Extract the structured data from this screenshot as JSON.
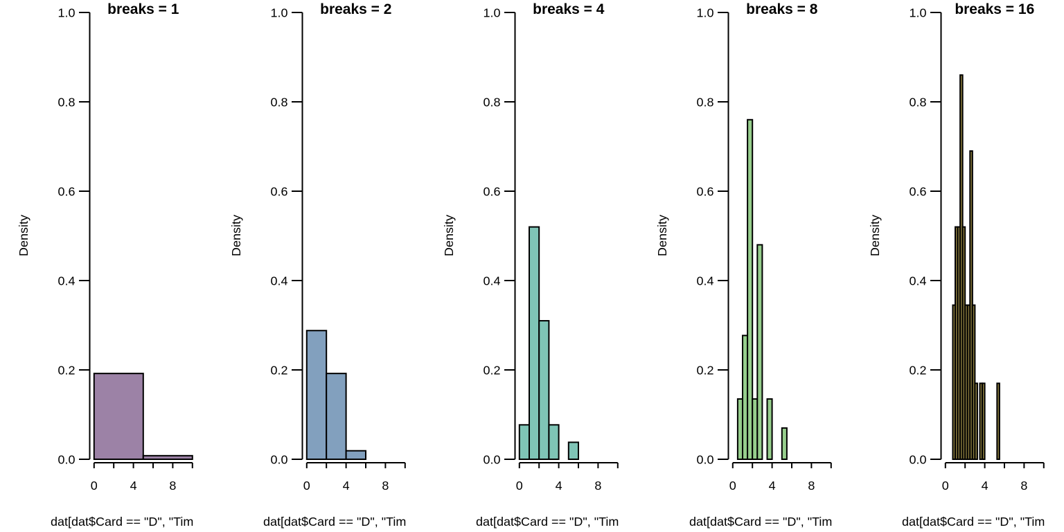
{
  "figure": {
    "background": "#ffffff",
    "axis_color": "#000000",
    "panel_count": 5
  },
  "chart_data": [
    {
      "type": "bar",
      "subtype": "histogram",
      "title": "breaks =  1",
      "ylabel": "Density",
      "xlabel": "dat[dat$Card == \"D\", \"Tim",
      "xlim": [
        0,
        10
      ],
      "ylim": [
        0,
        1
      ],
      "grid": false,
      "x_ticks": [
        0,
        2,
        4,
        6,
        8,
        10
      ],
      "x_tick_labels": [
        {
          "value": 0,
          "label": "0"
        },
        {
          "value": 4,
          "label": "4"
        },
        {
          "value": 8,
          "label": "8"
        }
      ],
      "y_ticks": [
        {
          "value": 0.0,
          "label": "0.0"
        },
        {
          "value": 0.2,
          "label": "0.2"
        },
        {
          "value": 0.4,
          "label": "0.4"
        },
        {
          "value": 0.6,
          "label": "0.6"
        },
        {
          "value": 0.8,
          "label": "0.8"
        },
        {
          "value": 1.0,
          "label": "1.0"
        }
      ],
      "bars": [
        {
          "from": 0,
          "to": 5,
          "density": 0.192
        },
        {
          "from": 5,
          "to": 10,
          "density": 0.008
        }
      ],
      "bar_fill": "#9C82A6",
      "bar_edge": "#000000"
    },
    {
      "type": "bar",
      "subtype": "histogram",
      "title": "breaks =  2",
      "ylabel": "Density",
      "xlabel": "dat[dat$Card == \"D\", \"Tim",
      "xlim": [
        0,
        10
      ],
      "ylim": [
        0,
        1
      ],
      "grid": false,
      "x_ticks": [
        0,
        2,
        4,
        6,
        8,
        10
      ],
      "x_tick_labels": [
        {
          "value": 0,
          "label": "0"
        },
        {
          "value": 4,
          "label": "4"
        },
        {
          "value": 8,
          "label": "8"
        }
      ],
      "y_ticks": [
        {
          "value": 0.0,
          "label": "0.0"
        },
        {
          "value": 0.2,
          "label": "0.2"
        },
        {
          "value": 0.4,
          "label": "0.4"
        },
        {
          "value": 0.6,
          "label": "0.6"
        },
        {
          "value": 0.8,
          "label": "0.8"
        },
        {
          "value": 1.0,
          "label": "1.0"
        }
      ],
      "bars": [
        {
          "from": 0,
          "to": 2,
          "density": 0.288
        },
        {
          "from": 2,
          "to": 4,
          "density": 0.192
        },
        {
          "from": 4,
          "to": 6,
          "density": 0.019
        }
      ],
      "bar_fill": "#82A0BE",
      "bar_edge": "#000000"
    },
    {
      "type": "bar",
      "subtype": "histogram",
      "title": "breaks =  4",
      "ylabel": "Density",
      "xlabel": "dat[dat$Card == \"D\", \"Tim",
      "xlim": [
        0,
        10
      ],
      "ylim": [
        0,
        1
      ],
      "grid": false,
      "x_ticks": [
        0,
        2,
        4,
        6,
        8,
        10
      ],
      "x_tick_labels": [
        {
          "value": 0,
          "label": "0"
        },
        {
          "value": 4,
          "label": "4"
        },
        {
          "value": 8,
          "label": "8"
        }
      ],
      "y_ticks": [
        {
          "value": 0.0,
          "label": "0.0"
        },
        {
          "value": 0.2,
          "label": "0.2"
        },
        {
          "value": 0.4,
          "label": "0.4"
        },
        {
          "value": 0.6,
          "label": "0.6"
        },
        {
          "value": 0.8,
          "label": "0.8"
        },
        {
          "value": 1.0,
          "label": "1.0"
        }
      ],
      "bars": [
        {
          "from": 0,
          "to": 1,
          "density": 0.077
        },
        {
          "from": 1,
          "to": 2,
          "density": 0.52
        },
        {
          "from": 2,
          "to": 3,
          "density": 0.31
        },
        {
          "from": 3,
          "to": 4,
          "density": 0.077
        },
        {
          "from": 5,
          "to": 6,
          "density": 0.038
        }
      ],
      "bar_fill": "#7FC4B6",
      "bar_edge": "#000000"
    },
    {
      "type": "bar",
      "subtype": "histogram",
      "title": "breaks =  8",
      "ylabel": "Density",
      "xlabel": "dat[dat$Card == \"D\", \"Tim",
      "xlim": [
        0,
        10
      ],
      "ylim": [
        0,
        1
      ],
      "grid": false,
      "x_ticks": [
        0,
        2,
        4,
        6,
        8,
        10
      ],
      "x_tick_labels": [
        {
          "value": 0,
          "label": "0"
        },
        {
          "value": 4,
          "label": "4"
        },
        {
          "value": 8,
          "label": "8"
        }
      ],
      "y_ticks": [
        {
          "value": 0.0,
          "label": "0.0"
        },
        {
          "value": 0.2,
          "label": "0.2"
        },
        {
          "value": 0.4,
          "label": "0.4"
        },
        {
          "value": 0.6,
          "label": "0.6"
        },
        {
          "value": 0.8,
          "label": "0.8"
        },
        {
          "value": 1.0,
          "label": "1.0"
        }
      ],
      "bars": [
        {
          "from": 0.5,
          "to": 1.0,
          "density": 0.135
        },
        {
          "from": 1.0,
          "to": 1.5,
          "density": 0.277
        },
        {
          "from": 1.5,
          "to": 2.0,
          "density": 0.76
        },
        {
          "from": 2.0,
          "to": 2.5,
          "density": 0.135
        },
        {
          "from": 2.5,
          "to": 3.0,
          "density": 0.48
        },
        {
          "from": 3.5,
          "to": 4.0,
          "density": 0.135
        },
        {
          "from": 5.0,
          "to": 5.5,
          "density": 0.07
        }
      ],
      "bar_fill": "#96CE8C",
      "bar_edge": "#000000"
    },
    {
      "type": "bar",
      "subtype": "histogram",
      "title": "breaks =  16",
      "ylabel": "Density",
      "xlabel": "dat[dat$Card == \"D\", \"Tim",
      "xlim": [
        0,
        10
      ],
      "ylim": [
        0,
        1
      ],
      "grid": false,
      "x_ticks": [
        0,
        2,
        4,
        6,
        8,
        10
      ],
      "x_tick_labels": [
        {
          "value": 0,
          "label": "0"
        },
        {
          "value": 4,
          "label": "4"
        },
        {
          "value": 8,
          "label": "8"
        }
      ],
      "y_ticks": [
        {
          "value": 0.0,
          "label": "0.0"
        },
        {
          "value": 0.2,
          "label": "0.2"
        },
        {
          "value": 0.4,
          "label": "0.4"
        },
        {
          "value": 0.6,
          "label": "0.6"
        },
        {
          "value": 0.8,
          "label": "0.8"
        },
        {
          "value": 1.0,
          "label": "1.0"
        }
      ],
      "bars": [
        {
          "from": 0.75,
          "to": 1.0,
          "density": 0.345
        },
        {
          "from": 1.0,
          "to": 1.25,
          "density": 0.52
        },
        {
          "from": 1.25,
          "to": 1.5,
          "density": 0.52
        },
        {
          "from": 1.5,
          "to": 1.75,
          "density": 0.86
        },
        {
          "from": 1.75,
          "to": 2.0,
          "density": 0.52
        },
        {
          "from": 2.0,
          "to": 2.25,
          "density": 0.345
        },
        {
          "from": 2.25,
          "to": 2.5,
          "density": 0.345
        },
        {
          "from": 2.5,
          "to": 2.75,
          "density": 0.69
        },
        {
          "from": 2.75,
          "to": 3.0,
          "density": 0.345
        },
        {
          "from": 3.0,
          "to": 3.25,
          "density": 0.17
        },
        {
          "from": 3.5,
          "to": 3.75,
          "density": 0.17
        },
        {
          "from": 3.75,
          "to": 4.0,
          "density": 0.17
        },
        {
          "from": 5.25,
          "to": 5.5,
          "density": 0.17
        }
      ],
      "bar_fill": "#8B7D3F",
      "bar_edge": "#000000"
    }
  ]
}
